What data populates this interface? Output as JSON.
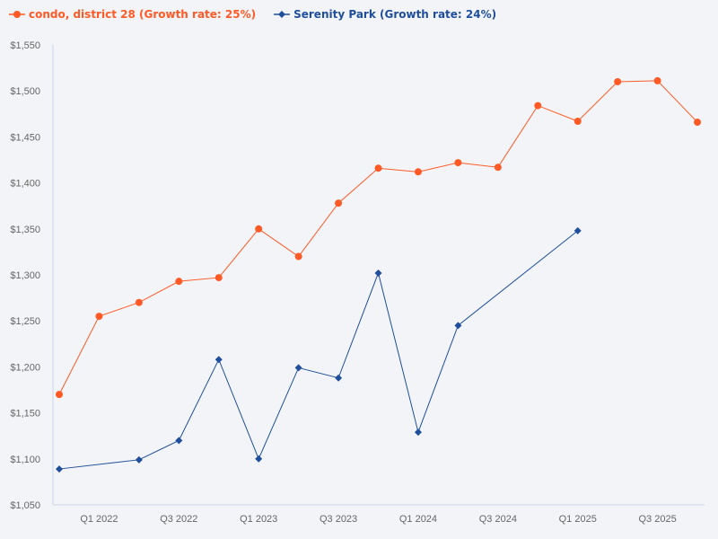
{
  "chart_data": {
    "type": "line",
    "title": "",
    "xlabel": "",
    "ylabel": "",
    "ylim": [
      1050,
      1550
    ],
    "yticks": [
      "$1,050",
      "$1,100",
      "$1,150",
      "$1,200",
      "$1,250",
      "$1,300",
      "$1,350",
      "$1,400",
      "$1,450",
      "$1,500",
      "$1,550"
    ],
    "ytick_values": [
      1050,
      1100,
      1150,
      1200,
      1250,
      1300,
      1350,
      1400,
      1450,
      1500,
      1550
    ],
    "grid": false,
    "legend": "top-left",
    "categories": [
      "Q4 2021",
      "Q1 2022",
      "Q2 2022",
      "Q3 2022",
      "Q4 2022",
      "Q1 2023",
      "Q2 2023",
      "Q3 2023",
      "Q4 2023",
      "Q1 2024",
      "Q2 2024",
      "Q3 2024",
      "Q4 2024",
      "Q1 2025",
      "Q2 2025",
      "Q3 2025",
      "Q4 2025"
    ],
    "xtick_labels": [
      "Q1 2022",
      "Q3 2022",
      "Q1 2023",
      "Q3 2023",
      "Q1 2024",
      "Q3 2024",
      "Q1 2025",
      "Q3 2025"
    ],
    "series": [
      {
        "name": "condo, district 28 (Growth rate: 25%)",
        "color": "#ff5a26",
        "marker": "circle",
        "values": [
          1170,
          1255,
          1270,
          1293,
          1297,
          1350,
          1320,
          1378,
          1416,
          1412,
          1422,
          1417,
          1484,
          1467,
          1510,
          1511,
          1466
        ]
      },
      {
        "name": "Serenity Park (Growth rate: 24%)",
        "color": "#1f4e9c",
        "marker": "diamond",
        "values": [
          1089,
          null,
          1099,
          1120,
          1208,
          1100,
          1199,
          1188,
          1302,
          1129,
          1245,
          null,
          null,
          1348,
          null,
          null,
          null
        ]
      }
    ]
  }
}
